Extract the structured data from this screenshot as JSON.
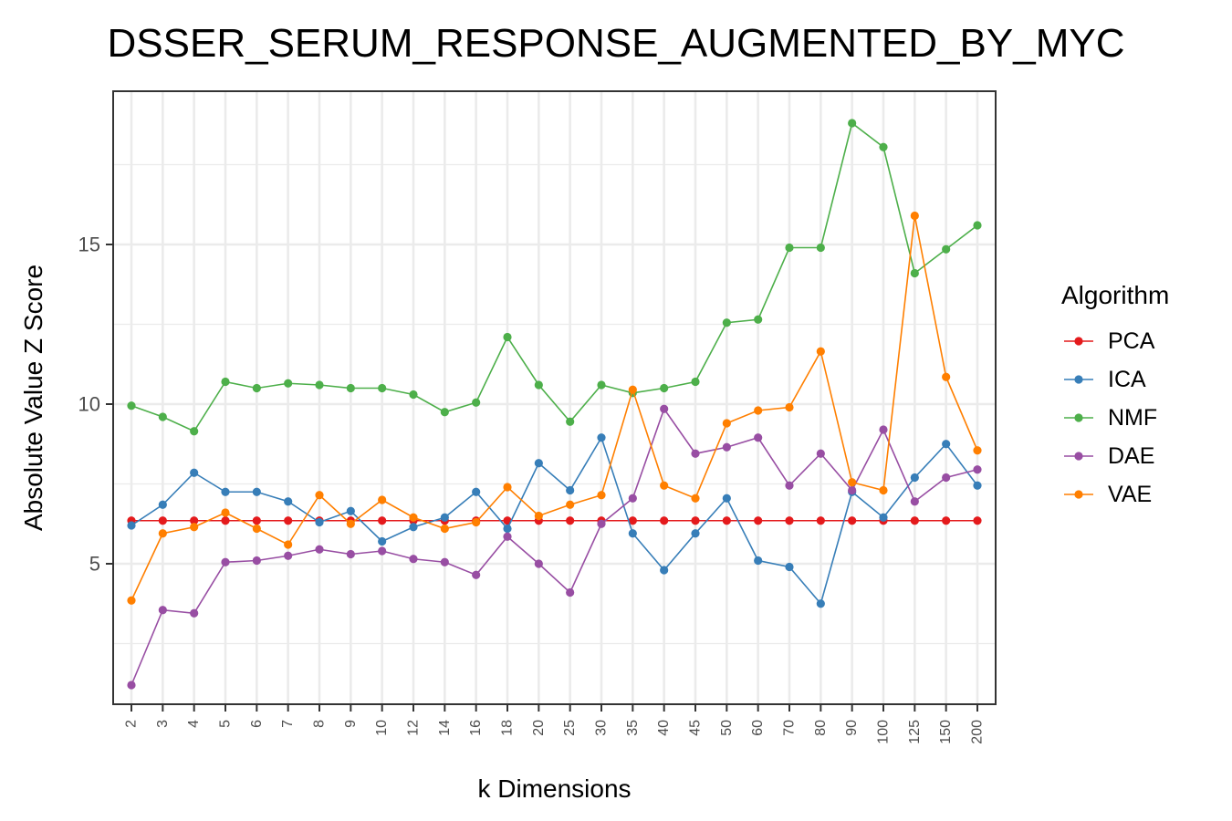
{
  "chart_data": {
    "type": "line",
    "title": "DSSER_SERUM_RESPONSE_AUGMENTED_BY_MYC",
    "xlabel": "k Dimensions",
    "ylabel": "Absolute Value Z Score",
    "categories": [
      "2",
      "3",
      "4",
      "5",
      "6",
      "7",
      "8",
      "9",
      "10",
      "12",
      "14",
      "16",
      "18",
      "20",
      "25",
      "30",
      "35",
      "40",
      "45",
      "50",
      "60",
      "70",
      "80",
      "90",
      "100",
      "125",
      "150",
      "200"
    ],
    "ylim": [
      0.6,
      19.8
    ],
    "yticks": [
      5,
      10,
      15
    ],
    "grid": true,
    "legend": {
      "title": "Algorithm",
      "position": "right"
    },
    "series": [
      {
        "name": "PCA",
        "color": "#e41a1c",
        "values": [
          6.35,
          6.35,
          6.35,
          6.35,
          6.35,
          6.35,
          6.35,
          6.35,
          6.35,
          6.35,
          6.35,
          6.35,
          6.35,
          6.35,
          6.35,
          6.35,
          6.35,
          6.35,
          6.35,
          6.35,
          6.35,
          6.35,
          6.35,
          6.35,
          6.35,
          6.35,
          6.35,
          6.35
        ]
      },
      {
        "name": "ICA",
        "color": "#377eb8",
        "values": [
          6.2,
          6.85,
          7.85,
          7.25,
          7.25,
          6.95,
          6.3,
          6.65,
          5.7,
          6.15,
          6.45,
          7.25,
          6.1,
          8.15,
          7.3,
          8.95,
          5.95,
          4.8,
          5.95,
          7.05,
          5.1,
          4.9,
          3.75,
          7.25,
          6.45,
          7.7,
          8.75,
          7.45
        ]
      },
      {
        "name": "NMF",
        "color": "#4daf4a",
        "values": [
          9.95,
          9.6,
          9.15,
          10.7,
          10.5,
          10.65,
          10.6,
          10.5,
          10.5,
          10.3,
          9.75,
          10.05,
          12.1,
          10.6,
          9.45,
          10.6,
          10.35,
          10.5,
          10.7,
          12.55,
          12.65,
          14.9,
          14.9,
          18.8,
          18.05,
          14.1,
          14.85,
          15.6
        ]
      },
      {
        "name": "DAE",
        "color": "#984ea3",
        "values": [
          1.2,
          3.55,
          3.45,
          5.05,
          5.1,
          5.25,
          5.45,
          5.3,
          5.4,
          5.15,
          5.05,
          4.65,
          5.85,
          5.0,
          4.1,
          6.25,
          7.05,
          9.85,
          8.45,
          8.65,
          8.95,
          7.45,
          8.45,
          7.3,
          9.2,
          6.95,
          7.7,
          7.95
        ]
      },
      {
        "name": "VAE",
        "color": "#ff7f00",
        "values": [
          3.85,
          5.95,
          6.15,
          6.6,
          6.1,
          5.6,
          7.15,
          6.25,
          7.0,
          6.45,
          6.1,
          6.3,
          7.4,
          6.5,
          6.85,
          7.15,
          10.45,
          7.45,
          7.05,
          9.4,
          9.8,
          9.9,
          11.65,
          7.55,
          7.3,
          15.9,
          10.85,
          8.55
        ]
      }
    ]
  }
}
